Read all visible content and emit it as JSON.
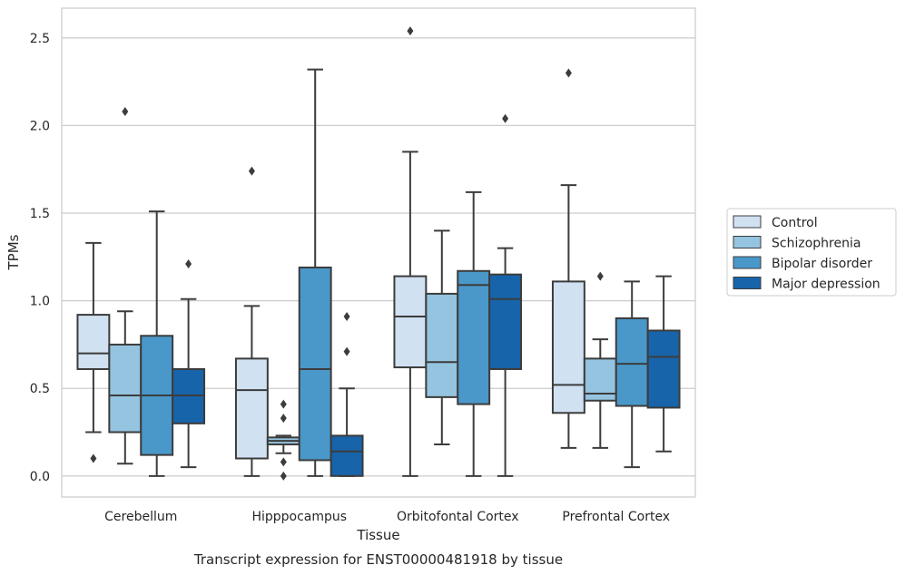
{
  "chart_data": {
    "type": "boxplot",
    "title": "",
    "caption": "Transcript expression for ENST00000481918 by tissue",
    "xlabel": "Tissue",
    "ylabel": "TPMs",
    "ylim": [
      -0.12,
      2.67
    ],
    "yticks": [
      "0.0",
      "0.5",
      "1.0",
      "1.5",
      "2.0",
      "2.5"
    ],
    "grid": "horizontal",
    "legend_position": "right",
    "categories": [
      "Cerebellum",
      "Hipppocampus",
      "Orbitofontal Cortex",
      "Prefrontal Cortex"
    ],
    "series": [
      {
        "name": "Control",
        "color": "#d0e1f2",
        "boxes": [
          {
            "whislo": 0.25,
            "q1": 0.61,
            "med": 0.7,
            "q3": 0.92,
            "whishi": 1.33,
            "fliers": [
              0.1
            ]
          },
          {
            "whislo": 0.0,
            "q1": 0.1,
            "med": 0.49,
            "q3": 0.67,
            "whishi": 0.97,
            "fliers": [
              1.74
            ]
          },
          {
            "whislo": 0.0,
            "q1": 0.62,
            "med": 0.91,
            "q3": 1.14,
            "whishi": 1.85,
            "fliers": [
              2.54
            ]
          },
          {
            "whislo": 0.16,
            "q1": 0.36,
            "med": 0.52,
            "q3": 1.11,
            "whishi": 1.66,
            "fliers": [
              2.3
            ]
          }
        ]
      },
      {
        "name": "Schizophrenia",
        "color": "#94c4df",
        "boxes": [
          {
            "whislo": 0.07,
            "q1": 0.25,
            "med": 0.46,
            "q3": 0.75,
            "whishi": 0.94,
            "fliers": [
              2.08
            ]
          },
          {
            "whislo": 0.13,
            "q1": 0.18,
            "med": 0.2,
            "q3": 0.22,
            "whishi": 0.23,
            "fliers": [
              0.41,
              0.33,
              0.08,
              0.0
            ]
          },
          {
            "whislo": 0.18,
            "q1": 0.45,
            "med": 0.65,
            "q3": 1.04,
            "whishi": 1.4,
            "fliers": []
          },
          {
            "whislo": 0.16,
            "q1": 0.43,
            "med": 0.47,
            "q3": 0.67,
            "whishi": 0.78,
            "fliers": [
              1.14
            ]
          }
        ]
      },
      {
        "name": "Bipolar disorder",
        "color": "#4a98c9",
        "boxes": [
          {
            "whislo": 0.0,
            "q1": 0.12,
            "med": 0.46,
            "q3": 0.8,
            "whishi": 1.51,
            "fliers": []
          },
          {
            "whislo": 0.0,
            "q1": 0.09,
            "med": 0.61,
            "q3": 1.19,
            "whishi": 2.32,
            "fliers": []
          },
          {
            "whislo": 0.0,
            "q1": 0.41,
            "med": 1.09,
            "q3": 1.17,
            "whishi": 1.62,
            "fliers": []
          },
          {
            "whislo": 0.05,
            "q1": 0.4,
            "med": 0.64,
            "q3": 0.9,
            "whishi": 1.11,
            "fliers": []
          }
        ]
      },
      {
        "name": "Major depression",
        "color": "#1764ab",
        "boxes": [
          {
            "whislo": 0.05,
            "q1": 0.3,
            "med": 0.46,
            "q3": 0.61,
            "whishi": 1.01,
            "fliers": [
              1.21
            ]
          },
          {
            "whislo": 0.0,
            "q1": 0.0,
            "med": 0.14,
            "q3": 0.23,
            "whishi": 0.5,
            "fliers": [
              0.91,
              0.71
            ]
          },
          {
            "whislo": 0.0,
            "q1": 0.61,
            "med": 1.01,
            "q3": 1.15,
            "whishi": 1.3,
            "fliers": [
              2.04
            ]
          },
          {
            "whislo": 0.14,
            "q1": 0.39,
            "med": 0.68,
            "q3": 0.83,
            "whishi": 1.14,
            "fliers": []
          }
        ]
      }
    ]
  }
}
